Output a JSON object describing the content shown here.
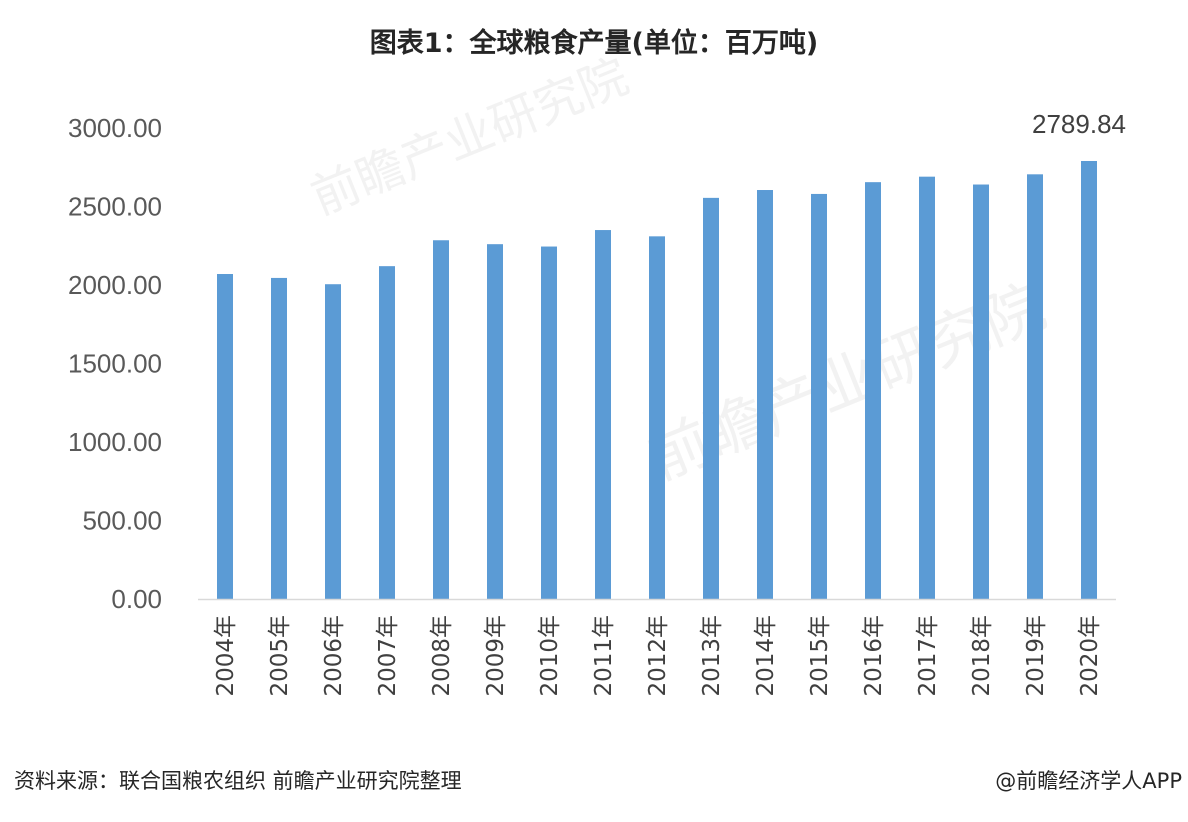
{
  "chart_data": {
    "type": "bar",
    "title": "图表1：全球粮食产量(单位：百万吨)",
    "categories": [
      "2004年",
      "2005年",
      "2006年",
      "2007年",
      "2008年",
      "2009年",
      "2010年",
      "2011年",
      "2012年",
      "2013年",
      "2014年",
      "2015年",
      "2016年",
      "2017年",
      "2018年",
      "2019年",
      "2020年"
    ],
    "series": [
      {
        "values": [
          2070,
          2045,
          2005,
          2120,
          2285,
          2260,
          2245,
          2350,
          2310,
          2555,
          2605,
          2580,
          2655,
          2690,
          2640,
          2705,
          2789.84
        ]
      }
    ],
    "yticks": [
      "0.00",
      "500.00",
      "1000.00",
      "1500.00",
      "2000.00",
      "2500.00",
      "3000.00"
    ],
    "ylim": [
      0,
      3000
    ],
    "data_labels": [
      {
        "category_index": 16,
        "text": "2789.84"
      }
    ],
    "grid": false,
    "legend": "none",
    "bar_color": "#5b9bd5",
    "axis_color": "#d9d9d9"
  },
  "footer": {
    "source": "资料来源：联合国粮农组织 前瞻产业研究院整理",
    "credit": "@前瞻经济学人APP"
  },
  "watermark": {
    "text": "前瞻产业研究院"
  }
}
